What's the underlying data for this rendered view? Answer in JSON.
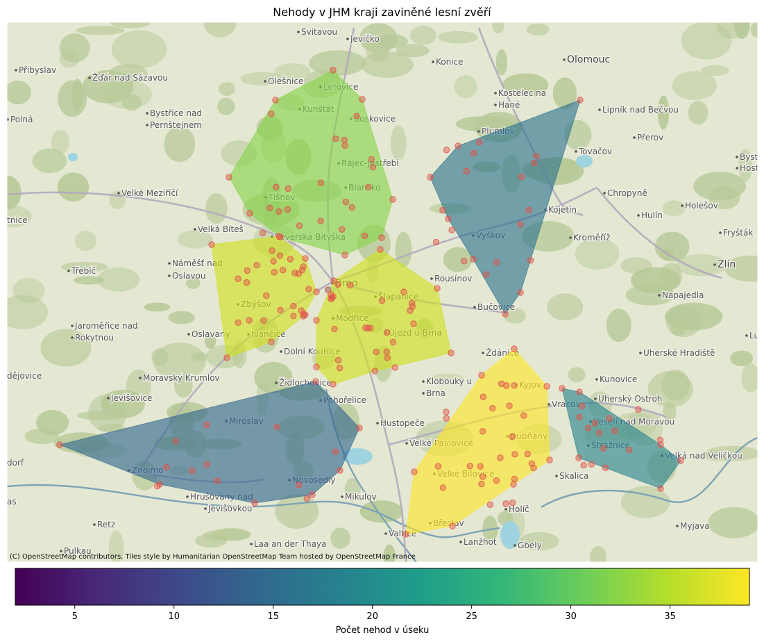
{
  "title": "Nehody v JHM kraji zaviněné lesní zvěří",
  "attribution": "(C) OpenStreetMap contributors, Tiles style by Humanitarian OpenStreetMap Team hosted by OpenStreetMap France",
  "colorbar": {
    "label": "Počet nehod v úseku",
    "min": 2,
    "max": 39,
    "ticks": [
      5,
      10,
      15,
      20,
      25,
      30,
      35
    ],
    "colormap": [
      "#440154",
      "#482878",
      "#3e4989",
      "#31688e",
      "#26828e",
      "#1f9e89",
      "#35b779",
      "#6ece58",
      "#b5de2b",
      "#fde725"
    ]
  },
  "colors": {
    "map_base": "#e4e7d2",
    "forest": "#b7c997",
    "water": "#9fd3df",
    "road": "#b3a9bd",
    "accident_point": "#e2534a"
  },
  "towns": [
    {
      "name": "Svitavou",
      "big": false
    },
    {
      "name": "Jevíčko",
      "big": false
    },
    {
      "name": "Konice",
      "big": false
    },
    {
      "name": "Olomouc",
      "big": true
    },
    {
      "name": "Přibyslav",
      "big": false
    },
    {
      "name": "Žďár nad Sázavou",
      "big": false
    },
    {
      "name": "Olešnice",
      "big": false
    },
    {
      "name": "Letovice",
      "big": false
    },
    {
      "name": "Kostelec na",
      "big": false
    },
    {
      "name": "Hané",
      "big": false
    },
    {
      "name": "Lipník nad Bečvou",
      "big": false
    },
    {
      "name": "Bystřice nad",
      "big": false
    },
    {
      "name": "Pernštejnem",
      "big": false
    },
    {
      "name": "Kunštát",
      "big": false
    },
    {
      "name": "Boskovice",
      "big": false
    },
    {
      "name": "Polná",
      "big": false
    },
    {
      "name": "Plumlov",
      "big": false
    },
    {
      "name": "Přerov",
      "big": false
    },
    {
      "name": "Tovačov",
      "big": false
    },
    {
      "name": "Rájec-Jestřebí",
      "big": false
    },
    {
      "name": "Bystřice p",
      "big": false
    },
    {
      "name": "Hostýner",
      "big": false
    },
    {
      "name": "Velké Meziříčí",
      "big": false
    },
    {
      "name": "Blansko",
      "big": false
    },
    {
      "name": "Tišnov",
      "big": false
    },
    {
      "name": "Chropyně",
      "big": false
    },
    {
      "name": "Holešov",
      "big": false
    },
    {
      "name": "Kojetín",
      "big": false
    },
    {
      "name": "Hulín",
      "big": false
    },
    {
      "name": "tnice",
      "big": false
    },
    {
      "name": "Velká Bíteš",
      "big": false
    },
    {
      "name": "Veverská Bítýška",
      "big": false
    },
    {
      "name": "Vyškov",
      "big": false
    },
    {
      "name": "Kroměříž",
      "big": false
    },
    {
      "name": "Fryšták",
      "big": false
    },
    {
      "name": "Třebíč",
      "big": false
    },
    {
      "name": "Náměšť nad",
      "big": false
    },
    {
      "name": "Oslavou",
      "big": false
    },
    {
      "name": "Zlín",
      "big": true
    },
    {
      "name": "Brno",
      "big": true
    },
    {
      "name": "Rousínov",
      "big": false
    },
    {
      "name": "Napajedla",
      "big": false
    },
    {
      "name": "Zbýšov",
      "big": false
    },
    {
      "name": "Šlapanice",
      "big": false
    },
    {
      "name": "Bučovice",
      "big": false
    },
    {
      "name": "Jaroměřice nad",
      "big": false
    },
    {
      "name": "Rokytnou",
      "big": false
    },
    {
      "name": "Modřice",
      "big": false
    },
    {
      "name": "Oslavany",
      "big": false
    },
    {
      "name": "Ivančice",
      "big": false
    },
    {
      "name": "Újezd u Brna",
      "big": false
    },
    {
      "name": "Dolní Kounice",
      "big": false
    },
    {
      "name": "Ždánice",
      "big": false
    },
    {
      "name": "Uherské Hradiště",
      "big": false
    },
    {
      "name": "Lu",
      "big": false
    },
    {
      "name": "dějovice",
      "big": false
    },
    {
      "name": "Moravský Krumlov",
      "big": false
    },
    {
      "name": "Židlochovice",
      "big": false
    },
    {
      "name": "Klobouky u",
      "big": false
    },
    {
      "name": "Brna",
      "big": false
    },
    {
      "name": "Kyjov",
      "big": false
    },
    {
      "name": "Kunovice",
      "big": false
    },
    {
      "name": "Jevišovice",
      "big": false
    },
    {
      "name": "Pohořelice",
      "big": false
    },
    {
      "name": "Vracov",
      "big": false
    },
    {
      "name": "Uherský Ostroh",
      "big": false
    },
    {
      "name": "Miroslav",
      "big": false
    },
    {
      "name": "Hustopeče",
      "big": false
    },
    {
      "name": "Veselí nad Moravou",
      "big": false
    },
    {
      "name": "Velké Pavlovice",
      "big": false
    },
    {
      "name": "Dubňany",
      "big": false
    },
    {
      "name": "Strážnice",
      "big": false
    },
    {
      "name": "dorf",
      "big": false
    },
    {
      "name": "Velká nad Veličkou",
      "big": false
    },
    {
      "name": "Znojmo",
      "big": false
    },
    {
      "name": "Velké Bílovice",
      "big": false
    },
    {
      "name": "Skalica",
      "big": false
    },
    {
      "name": "Novosedly",
      "big": false
    },
    {
      "name": "as",
      "big": false
    },
    {
      "name": "Hrušovany nad",
      "big": false
    },
    {
      "name": "Jevišovkou",
      "big": false
    },
    {
      "name": "Mikulov",
      "big": false
    },
    {
      "name": "Holíč",
      "big": false
    },
    {
      "name": "Retz",
      "big": false
    },
    {
      "name": "Břeclav",
      "big": false
    },
    {
      "name": "Myjava",
      "big": false
    },
    {
      "name": "Valtice",
      "big": false
    },
    {
      "name": "Lanžhot",
      "big": false
    },
    {
      "name": "Pulkau",
      "big": false
    },
    {
      "name": "Laa an der Thaya",
      "big": false
    },
    {
      "name": "Gbely",
      "big": false
    }
  ],
  "sections": [
    {
      "count": 30,
      "color": "#86d549"
    },
    {
      "count": 23,
      "color": "#2c728e"
    },
    {
      "count": 36,
      "color": "#d0e11c"
    },
    {
      "count": 36,
      "color": "#d0e11c"
    },
    {
      "count": 39,
      "color": "#fde725"
    },
    {
      "count": 15,
      "color": "#31688e"
    },
    {
      "count": 20,
      "color": "#26828e"
    }
  ]
}
